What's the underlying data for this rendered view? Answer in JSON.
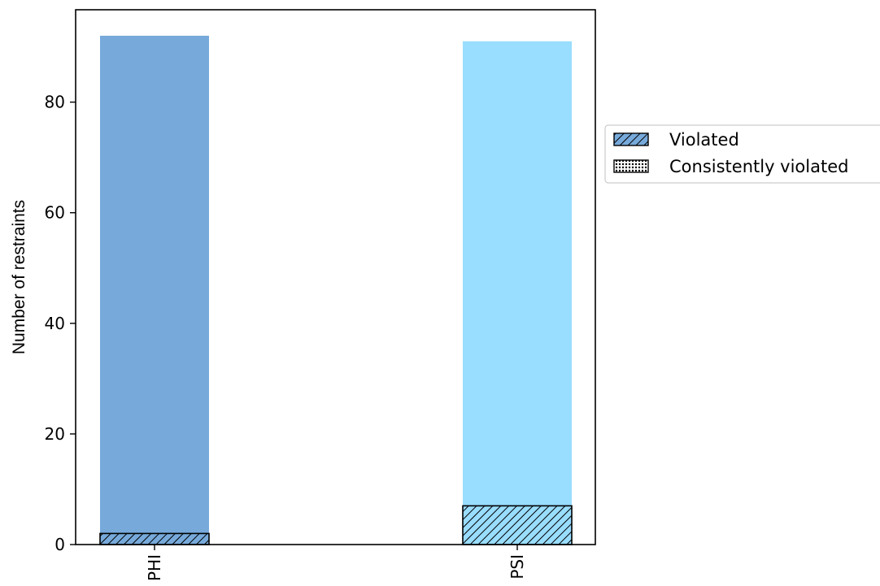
{
  "chart_data": {
    "type": "bar",
    "categories": [
      "PHI",
      "PSI"
    ],
    "series": [
      {
        "values": [
          92,
          91
        ],
        "colors": [
          "#77aadb",
          "#99ddff"
        ]
      },
      {
        "name": "Violated",
        "values": [
          2,
          7
        ],
        "hatch": "diagonal",
        "color": "#77aadb"
      },
      {
        "name": "Consistently violated",
        "values": [
          0,
          0
        ],
        "hatch": "dotted",
        "color": "#77aadb"
      }
    ],
    "title": "",
    "xlabel": "",
    "ylabel": "Number of restraints",
    "ylim": [
      0,
      96.7
    ],
    "yticks": [
      0,
      20,
      40,
      60,
      80
    ],
    "grid": false,
    "legend_position": "right-outside"
  }
}
